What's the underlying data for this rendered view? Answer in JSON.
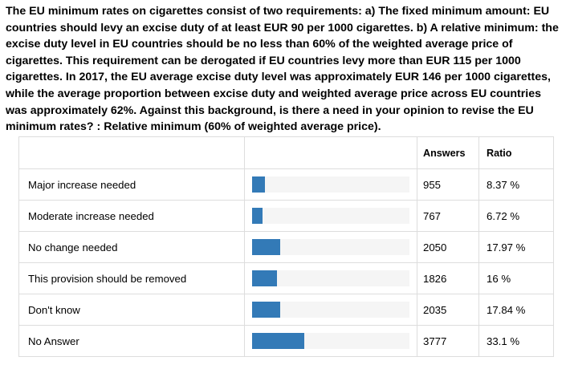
{
  "question": "The EU minimum rates on cigarettes consist of two requirements: a) The fixed minimum amount: EU countries should levy an excise duty of at least EUR 90 per 1000 cigarettes. b) A relative minimum: the excise duty level in EU countries should be no less than 60% of the weighted average price of cigarettes. This requirement can be derogated if EU countries levy more than EUR 115 per 1000 cigarettes. In 2017, the EU average excise duty level was approximately EUR 146 per 1000 cigarettes, while the average proportion between excise duty and weighted average price across EU countries was approximately 62%. Against this background, is there a need in your opinion to revise the EU minimum rates? : Relative minimum (60% of weighted average price).",
  "table": {
    "headers": {
      "answers": "Answers",
      "ratio": "Ratio"
    },
    "bar_color": "#337ab7",
    "rows": [
      {
        "label": "Major increase needed",
        "answers": "955",
        "ratio": "8.37 %",
        "ratio_value": 8.37
      },
      {
        "label": "Moderate increase needed",
        "answers": "767",
        "ratio": "6.72 %",
        "ratio_value": 6.72
      },
      {
        "label": "No change needed",
        "answers": "2050",
        "ratio": "17.97 %",
        "ratio_value": 17.97
      },
      {
        "label": "This provision should be removed",
        "answers": "1826",
        "ratio": "16 %",
        "ratio_value": 16
      },
      {
        "label": "Don't know",
        "answers": "2035",
        "ratio": "17.84 %",
        "ratio_value": 17.84
      },
      {
        "label": "No Answer",
        "answers": "3777",
        "ratio": "33.1 %",
        "ratio_value": 33.1
      }
    ]
  }
}
